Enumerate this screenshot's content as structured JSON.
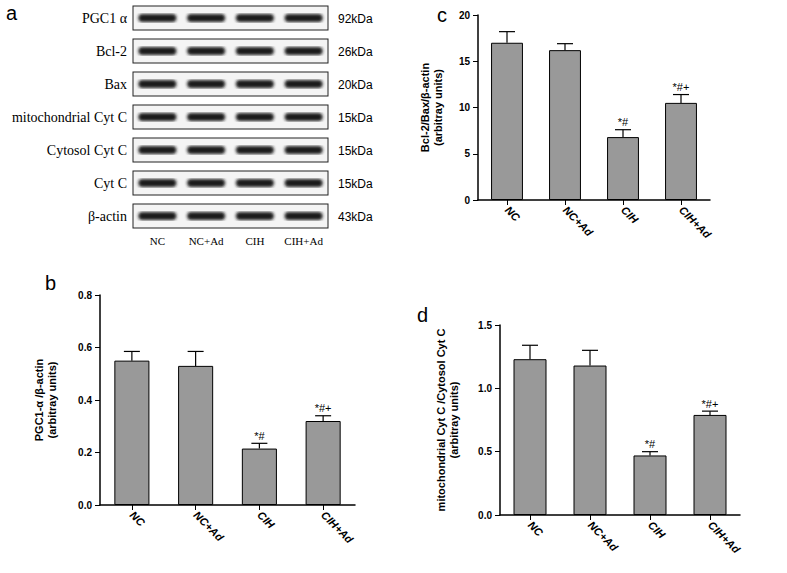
{
  "blot": {
    "panel": "a",
    "rows": [
      {
        "label": "PGC1 α",
        "size": "92kDa"
      },
      {
        "label": "Bcl-2",
        "size": "26kDa"
      },
      {
        "label": "Bax",
        "size": "20kDa"
      },
      {
        "label": "mitochondrial Cyt C",
        "size": "15kDa"
      },
      {
        "label": "Cytosol Cyt C",
        "size": "15kDa"
      },
      {
        "label": "Cyt C",
        "size": "15kDa"
      },
      {
        "label": "β-actin",
        "size": "43kDa"
      }
    ],
    "lanes": [
      "NC",
      "NC+Ad",
      "CIH",
      "CIH+Ad"
    ]
  },
  "chart_data": [
    {
      "type": "bar",
      "title": "c",
      "ylabel": "Bcl-2/Bax/β-actin\n(arbitray units)",
      "categories": [
        "NC",
        "NC+Ad",
        "CIH",
        "CIH+Ad"
      ],
      "values": [
        17.0,
        16.2,
        6.8,
        10.5
      ],
      "error": [
        1.2,
        0.7,
        0.8,
        0.9
      ],
      "annotations": [
        null,
        null,
        "*#",
        "*#+"
      ],
      "color": "#999999",
      "ylim": [
        0,
        20
      ],
      "yticks": [
        0,
        5,
        10,
        15,
        20
      ],
      "grid": false
    },
    {
      "type": "bar",
      "title": "b",
      "ylabel": "PGC1-α /β-actin\n(arbitray units)",
      "categories": [
        "NC",
        "NC+Ad",
        "CIH",
        "CIH+Ad"
      ],
      "values": [
        0.55,
        0.53,
        0.215,
        0.32
      ],
      "error": [
        0.035,
        0.055,
        0.02,
        0.02
      ],
      "annotations": [
        null,
        null,
        "*#",
        "*#+"
      ],
      "color": "#999999",
      "ylim": [
        0,
        0.8
      ],
      "yticks": [
        {
          "value": 0,
          "label": "0.0"
        },
        0.2,
        0.4,
        0.6,
        0.8
      ],
      "grid": false
    },
    {
      "type": "bar",
      "title": "d",
      "ylabel": "mitochondrial Cyt C /Cytosol Cyt C\n(arbitray units)",
      "categories": [
        "NC",
        "NC+Ad",
        "CIH",
        "CIH+Ad"
      ],
      "values": [
        1.23,
        1.18,
        0.47,
        0.79
      ],
      "error": [
        0.11,
        0.12,
        0.03,
        0.03
      ],
      "annotations": [
        null,
        null,
        "*#",
        "*#+"
      ],
      "color": "#999999",
      "ylim": [
        0,
        1.5
      ],
      "yticks": [
        {
          "value": 0,
          "label": "0.0"
        },
        0.5,
        {
          "value": 1,
          "label": "1.0"
        },
        1.5
      ],
      "grid": false
    }
  ]
}
